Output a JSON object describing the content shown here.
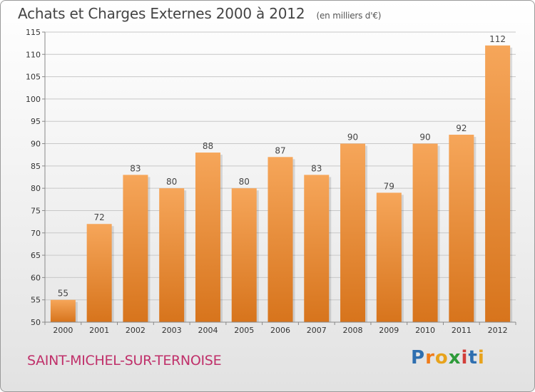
{
  "header": {
    "title": "Achats et Charges Externes 2000 à 2012",
    "unit": "(en milliers d'€)"
  },
  "footer": {
    "commune": "SAINT-MICHEL-SUR-TERNOISE",
    "brand": "Proxiti",
    "brand_letters": [
      {
        "ch": "P",
        "color": "#2f6fb0"
      },
      {
        "ch": "r",
        "color": "#f07c1a"
      },
      {
        "ch": "o",
        "color": "#e8a31c"
      },
      {
        "ch": "x",
        "color": "#2e9b3a"
      },
      {
        "ch": "i",
        "color": "#d23f3a"
      },
      {
        "ch": "t",
        "color": "#2f6fb0"
      },
      {
        "ch": "i",
        "color": "#e8a31c"
      }
    ]
  },
  "colors": {
    "bar_top": "#f6a65a",
    "bar_bottom": "#d7741c",
    "grid": "#c8c8c8",
    "axis_text": "#333333"
  },
  "chart_data": {
    "type": "bar",
    "title": "Achats et Charges Externes 2000 à 2012",
    "subtitle": "(en milliers d'€)",
    "categories": [
      "2000",
      "2001",
      "2002",
      "2003",
      "2004",
      "2005",
      "2006",
      "2007",
      "2008",
      "2009",
      "2010",
      "2011",
      "2012"
    ],
    "values": [
      55,
      72,
      83,
      80,
      88,
      80,
      87,
      83,
      90,
      79,
      90,
      92,
      112
    ],
    "ylim": [
      50,
      115
    ],
    "yticks": [
      50,
      55,
      60,
      65,
      70,
      75,
      80,
      85,
      90,
      95,
      100,
      105,
      110,
      115
    ],
    "xlabel": "",
    "ylabel": "",
    "grid": true,
    "legend": false
  }
}
